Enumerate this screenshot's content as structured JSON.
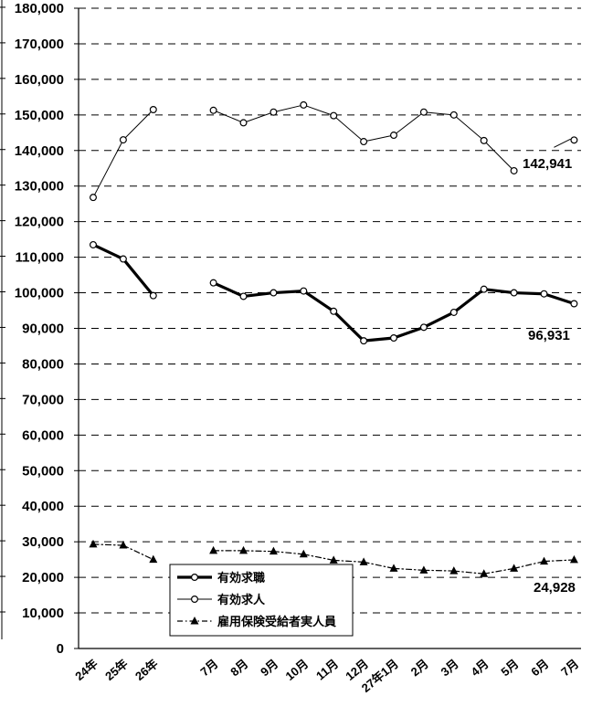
{
  "chart_data": {
    "type": "line",
    "categories": [
      "24年",
      "25年",
      "26年",
      "",
      "7月",
      "8月",
      "9月",
      "10月",
      "11月",
      "12月",
      "27年1月",
      "2月",
      "3月",
      "4月",
      "5月",
      "6月",
      "7月"
    ],
    "ylim": [
      0,
      180000
    ],
    "yticks": [
      "0",
      "10,000",
      "20,000",
      "30,000",
      "40,000",
      "50,000",
      "60,000",
      "70,000",
      "80,000",
      "90,000",
      "100,000",
      "110,000",
      "120,000",
      "130,000",
      "140,000",
      "150,000",
      "160,000",
      "170,000",
      "180,000"
    ],
    "grid": "dashed horizontal",
    "legend_position": "bottom-center",
    "series": [
      {
        "name": "有効求職",
        "color": "#000000",
        "style": "solid-thick",
        "marker": "open-circle",
        "values": [
          113500,
          109500,
          99200,
          null,
          102800,
          99000,
          100000,
          100500,
          94800,
          86500,
          87300,
          90300,
          94500,
          101000,
          100000,
          99700,
          96931
        ]
      },
      {
        "name": "有効求人",
        "color": "#000000",
        "style": "solid-thin",
        "marker": "open-circle",
        "values": [
          126800,
          143000,
          151500,
          null,
          151300,
          147800,
          150800,
          152800,
          149800,
          142500,
          144300,
          150800,
          150000,
          142800,
          134300,
          null,
          142941
        ]
      },
      {
        "name": "雇用保険受給者実人員",
        "color": "#000000",
        "style": "dash-dot",
        "marker": "filled-triangle",
        "values": [
          29300,
          29000,
          25000,
          null,
          27500,
          27500,
          27300,
          26500,
          24800,
          24300,
          22500,
          22000,
          21800,
          21000,
          22500,
          24500,
          24928
        ]
      }
    ],
    "annotations": [
      "142,941",
      "96,931",
      "24,928"
    ]
  }
}
